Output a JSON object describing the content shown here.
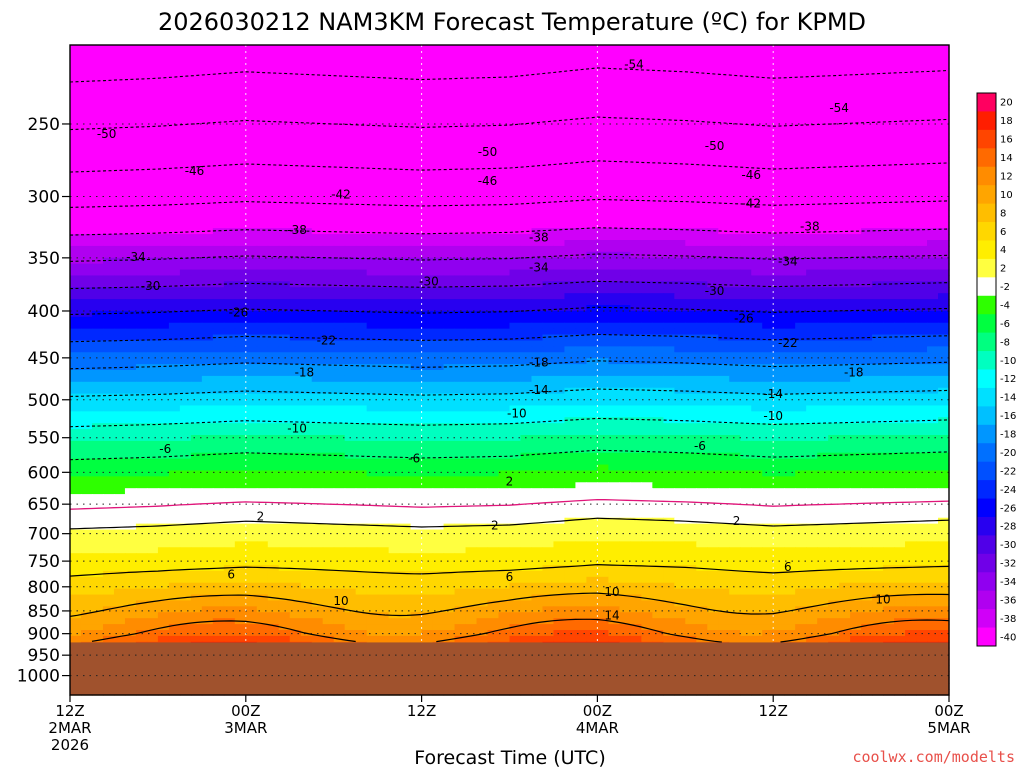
{
  "chart_data": {
    "type": "heatmap",
    "title": "2026030212 NAM3KM Forecast Temperature (ºC) for KPMD",
    "xlabel": "Forecast Time (UTC)",
    "ylabel": "",
    "credit": "coolwx.com/modelts",
    "y_axis": {
      "ticks": [
        250,
        300,
        350,
        400,
        450,
        500,
        550,
        600,
        650,
        700,
        750,
        800,
        850,
        900,
        950,
        1000
      ],
      "range_hpa": [
        205,
        1050
      ],
      "scale": "log",
      "inverted": true
    },
    "x_axis": {
      "range_hours": [
        0,
        60
      ],
      "ticks": [
        {
          "hour": 0,
          "lines": [
            "12Z",
            "2MAR",
            "2026"
          ]
        },
        {
          "hour": 12,
          "lines": [
            "00Z",
            "3MAR"
          ]
        },
        {
          "hour": 24,
          "lines": [
            "12Z"
          ]
        },
        {
          "hour": 36,
          "lines": [
            "00Z",
            "4MAR"
          ]
        },
        {
          "hour": 48,
          "lines": [
            "12Z"
          ]
        },
        {
          "hour": 60,
          "lines": [
            "00Z",
            "5MAR"
          ]
        }
      ]
    },
    "ground_level_hpa": 920,
    "colorbar": {
      "labels": [
        "20",
        "18",
        "16",
        "14",
        "12",
        "10",
        "8",
        "6",
        "4",
        "2",
        "-2",
        "-4",
        "-6",
        "-8",
        "-10",
        "-12",
        "-14",
        "-16",
        "-18",
        "-20",
        "-22",
        "-24",
        "-26",
        "-28",
        "-30",
        "-32",
        "-34",
        "-36",
        "-38",
        "-40"
      ],
      "colors": [
        "#ff0060",
        "#ff1e00",
        "#ff4500",
        "#ff6a00",
        "#ff8c00",
        "#ffa500",
        "#ffbe00",
        "#ffd700",
        "#ffee00",
        "#ffff40",
        "#ffffff",
        "#2eff00",
        "#00ff40",
        "#00ff80",
        "#00ffc0",
        "#00ffff",
        "#00e0ff",
        "#00c0ff",
        "#0096ff",
        "#0070ff",
        "#0050ff",
        "#0028ff",
        "#0000ff",
        "#2800f0",
        "#5000e8",
        "#7000e8",
        "#9000f0",
        "#b000f0",
        "#d000f8",
        "#ff00ff"
      ]
    },
    "temperature_profile": {
      "hours": [
        0,
        6,
        12,
        18,
        24,
        30,
        36,
        42,
        48,
        54,
        60
      ],
      "base_pressure_hpa": [
        250,
        300,
        350,
        400,
        450,
        500,
        550,
        600,
        650,
        700,
        750,
        800,
        850,
        900,
        920
      ],
      "base_temp_c": [
        -50,
        -43,
        -34,
        -26,
        -19,
        -13,
        -8,
        -4,
        0,
        3,
        5,
        8,
        11,
        14,
        16
      ],
      "hourly_offset_c": [
        -0.5,
        -0.2,
        0.3,
        0.0,
        -0.3,
        -0.1,
        0.6,
        0.3,
        -0.2,
        0.1,
        0.4
      ]
    },
    "contours": {
      "dashed_levels": [
        -54,
        -50,
        -46,
        -42,
        -38,
        -34,
        -30,
        -26,
        -22,
        -18,
        -14,
        -10,
        -6
      ],
      "zero_line": 0,
      "solid_levels": [
        2,
        6,
        10,
        14
      ]
    },
    "contour_labels": [
      {
        "text": "-54",
        "hour": 38.5,
        "hpa": 215
      },
      {
        "text": "-54",
        "hour": 52.5,
        "hpa": 240
      },
      {
        "text": "-50",
        "hour": 2.5,
        "hpa": 256
      },
      {
        "text": "-50",
        "hour": 28.5,
        "hpa": 268
      },
      {
        "text": "-50",
        "hour": 44.0,
        "hpa": 264
      },
      {
        "text": "-46",
        "hour": 8.5,
        "hpa": 281
      },
      {
        "text": "-46",
        "hour": 28.5,
        "hpa": 288
      },
      {
        "text": "-46",
        "hour": 46.5,
        "hpa": 284
      },
      {
        "text": "-42",
        "hour": 18.5,
        "hpa": 298
      },
      {
        "text": "-42",
        "hour": 46.5,
        "hpa": 305
      },
      {
        "text": "-38",
        "hour": 15.5,
        "hpa": 326
      },
      {
        "text": "-38",
        "hour": 32.0,
        "hpa": 332
      },
      {
        "text": "-38",
        "hour": 50.5,
        "hpa": 323
      },
      {
        "text": "-34",
        "hour": 4.5,
        "hpa": 349
      },
      {
        "text": "-34",
        "hour": 32.0,
        "hpa": 358
      },
      {
        "text": "-34",
        "hour": 49.0,
        "hpa": 353
      },
      {
        "text": "-30",
        "hour": 5.5,
        "hpa": 375
      },
      {
        "text": "-30",
        "hour": 24.5,
        "hpa": 371
      },
      {
        "text": "-30",
        "hour": 44.0,
        "hpa": 380
      },
      {
        "text": "-26",
        "hour": 11.5,
        "hpa": 401
      },
      {
        "text": "-26",
        "hour": 46.0,
        "hpa": 407
      },
      {
        "text": "-22",
        "hour": 17.5,
        "hpa": 430
      },
      {
        "text": "-22",
        "hour": 49.0,
        "hpa": 433
      },
      {
        "text": "-18",
        "hour": 16.0,
        "hpa": 466
      },
      {
        "text": "-18",
        "hour": 32.0,
        "hpa": 455
      },
      {
        "text": "-18",
        "hour": 53.5,
        "hpa": 466
      },
      {
        "text": "-14",
        "hour": 32.0,
        "hpa": 487
      },
      {
        "text": "-14",
        "hour": 48.0,
        "hpa": 492
      },
      {
        "text": "-10",
        "hour": 30.5,
        "hpa": 517
      },
      {
        "text": "-10",
        "hour": 48.0,
        "hpa": 520
      },
      {
        "text": "-10",
        "hour": 15.5,
        "hpa": 537
      },
      {
        "text": "-6",
        "hour": 6.5,
        "hpa": 565
      },
      {
        "text": "-6",
        "hour": 23.5,
        "hpa": 579
      },
      {
        "text": "-6",
        "hour": 43.0,
        "hpa": 561
      },
      {
        "text": "2",
        "hour": 30.0,
        "hpa": 613
      },
      {
        "text": "2",
        "hour": 13.0,
        "hpa": 670
      },
      {
        "text": "2",
        "hour": 29.0,
        "hpa": 685
      },
      {
        "text": "2",
        "hour": 45.5,
        "hpa": 677
      },
      {
        "text": "6",
        "hour": 11.0,
        "hpa": 775
      },
      {
        "text": "6",
        "hour": 30.0,
        "hpa": 780
      },
      {
        "text": "6",
        "hour": 49.0,
        "hpa": 760
      },
      {
        "text": "10",
        "hour": 18.5,
        "hpa": 828
      },
      {
        "text": "10",
        "hour": 37.0,
        "hpa": 810
      },
      {
        "text": "10",
        "hour": 55.5,
        "hpa": 825
      },
      {
        "text": "14",
        "hour": 37.0,
        "hpa": 859
      }
    ]
  }
}
